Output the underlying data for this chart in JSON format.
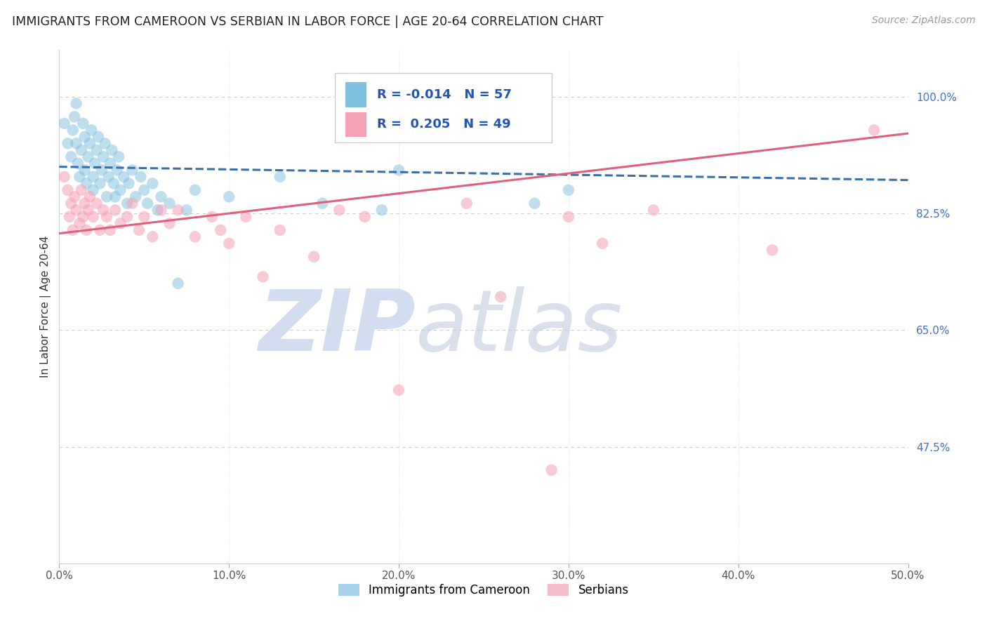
{
  "title": "IMMIGRANTS FROM CAMEROON VS SERBIAN IN LABOR FORCE | AGE 20-64 CORRELATION CHART",
  "source": "Source: ZipAtlas.com",
  "ylabel": "In Labor Force | Age 20-64",
  "xlim": [
    0.0,
    0.5
  ],
  "ylim": [
    0.3,
    1.07
  ],
  "xticks": [
    0.0,
    0.1,
    0.2,
    0.3,
    0.4,
    0.5
  ],
  "xticklabels": [
    "0.0%",
    "10.0%",
    "20.0%",
    "30.0%",
    "40.0%",
    "50.0%"
  ],
  "yticks": [
    0.475,
    0.65,
    0.825,
    1.0
  ],
  "yticklabels": [
    "47.5%",
    "65.0%",
    "82.5%",
    "100.0%"
  ],
  "blue_R": "-0.014",
  "blue_N": "57",
  "pink_R": "0.205",
  "pink_N": "49",
  "blue_color": "#7fbfdf",
  "pink_color": "#f4a0b5",
  "blue_line_color": "#3a6faa",
  "pink_line_color": "#e0607a",
  "legend_label_blue": "Immigrants from Cameroon",
  "legend_label_pink": "Serbians",
  "blue_x": [
    0.003,
    0.005,
    0.007,
    0.008,
    0.009,
    0.01,
    0.01,
    0.011,
    0.012,
    0.013,
    0.014,
    0.015,
    0.015,
    0.016,
    0.017,
    0.018,
    0.019,
    0.02,
    0.02,
    0.021,
    0.022,
    0.023,
    0.024,
    0.025,
    0.026,
    0.027,
    0.028,
    0.029,
    0.03,
    0.031,
    0.032,
    0.033,
    0.034,
    0.035,
    0.036,
    0.038,
    0.04,
    0.041,
    0.043,
    0.045,
    0.048,
    0.05,
    0.052,
    0.055,
    0.058,
    0.06,
    0.065,
    0.07,
    0.075,
    0.08,
    0.1,
    0.13,
    0.155,
    0.19,
    0.2,
    0.28,
    0.3
  ],
  "blue_y": [
    0.96,
    0.93,
    0.91,
    0.95,
    0.97,
    0.99,
    0.93,
    0.9,
    0.88,
    0.92,
    0.96,
    0.94,
    0.89,
    0.87,
    0.91,
    0.93,
    0.95,
    0.88,
    0.86,
    0.9,
    0.92,
    0.94,
    0.87,
    0.89,
    0.91,
    0.93,
    0.85,
    0.88,
    0.9,
    0.92,
    0.87,
    0.85,
    0.89,
    0.91,
    0.86,
    0.88,
    0.84,
    0.87,
    0.89,
    0.85,
    0.88,
    0.86,
    0.84,
    0.87,
    0.83,
    0.85,
    0.84,
    0.72,
    0.83,
    0.86,
    0.85,
    0.88,
    0.84,
    0.83,
    0.89,
    0.84,
    0.86
  ],
  "pink_x": [
    0.003,
    0.005,
    0.006,
    0.007,
    0.008,
    0.009,
    0.01,
    0.012,
    0.013,
    0.014,
    0.015,
    0.016,
    0.017,
    0.018,
    0.02,
    0.022,
    0.024,
    0.026,
    0.028,
    0.03,
    0.033,
    0.036,
    0.04,
    0.043,
    0.047,
    0.05,
    0.055,
    0.06,
    0.065,
    0.07,
    0.08,
    0.09,
    0.095,
    0.1,
    0.11,
    0.12,
    0.13,
    0.15,
    0.165,
    0.18,
    0.2,
    0.24,
    0.26,
    0.29,
    0.3,
    0.32,
    0.35,
    0.42,
    0.48
  ],
  "pink_y": [
    0.88,
    0.86,
    0.82,
    0.84,
    0.8,
    0.85,
    0.83,
    0.81,
    0.86,
    0.82,
    0.84,
    0.8,
    0.83,
    0.85,
    0.82,
    0.84,
    0.8,
    0.83,
    0.82,
    0.8,
    0.83,
    0.81,
    0.82,
    0.84,
    0.8,
    0.82,
    0.79,
    0.83,
    0.81,
    0.83,
    0.79,
    0.82,
    0.8,
    0.78,
    0.82,
    0.73,
    0.8,
    0.76,
    0.83,
    0.82,
    0.56,
    0.84,
    0.7,
    0.44,
    0.82,
    0.78,
    0.83,
    0.77,
    0.95
  ],
  "blue_trend_x": [
    0.0,
    0.5
  ],
  "blue_trend_y": [
    0.895,
    0.875
  ],
  "pink_trend_x": [
    0.0,
    0.5
  ],
  "pink_trend_y": [
    0.795,
    0.945
  ]
}
